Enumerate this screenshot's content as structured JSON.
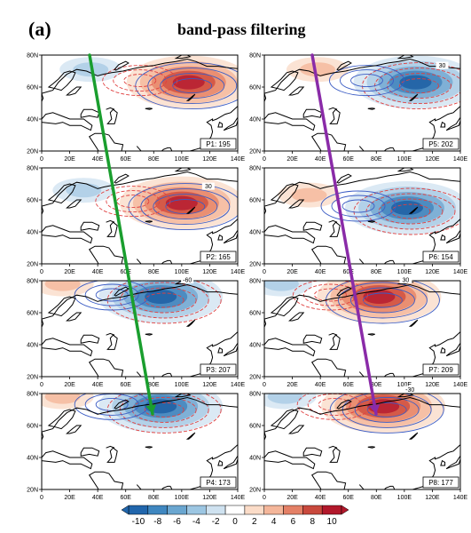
{
  "figure": {
    "label": "(a)",
    "title": "band-pass filtering"
  },
  "axes": {
    "lat_ticks": [
      "20N",
      "40N",
      "60N",
      "80N"
    ],
    "lon_ticks": [
      "0",
      "20E",
      "40E",
      "60E",
      "80E",
      "100E",
      "120E",
      "140E"
    ]
  },
  "panels": [
    {
      "id": "P1",
      "label": "P1: 195",
      "anomaly": "warm",
      "center_lon": 105,
      "center_lat": 63
    },
    {
      "id": "P2",
      "label": "P2: 165",
      "anomaly": "warm",
      "center_lon": 100,
      "center_lat": 58
    },
    {
      "id": "P3",
      "label": "P3: 207",
      "anomaly": "cold",
      "center_lon": 85,
      "center_lat": 70
    },
    {
      "id": "P4",
      "label": "P4: 173",
      "anomaly": "cold",
      "center_lon": 85,
      "center_lat": 72
    },
    {
      "id": "P5",
      "label": "P5: 202",
      "anomaly": "cold",
      "center_lon": 108,
      "center_lat": 63
    },
    {
      "id": "P6",
      "label": "P6: 154",
      "anomaly": "cold",
      "center_lon": 102,
      "center_lat": 55
    },
    {
      "id": "P7",
      "label": "P7: 209",
      "anomaly": "warm",
      "center_lon": 82,
      "center_lat": 70
    },
    {
      "id": "P8",
      "label": "P8: 177",
      "anomaly": "warm",
      "center_lon": 85,
      "center_lat": 72
    }
  ],
  "contour_labels": {
    "P2": "30",
    "P3": "-60",
    "P5": "30",
    "P7": "30",
    "P8": "-30"
  },
  "colorbar": {
    "ticks": [
      "-10",
      "-8",
      "-6",
      "-4",
      "-2",
      "0",
      "2",
      "4",
      "6",
      "8",
      "10"
    ],
    "colors": [
      "#2166ac",
      "#3f87c0",
      "#6aa6d0",
      "#9cc6e2",
      "#cfe2f0",
      "#ffffff",
      "#fbdcc8",
      "#f4b69a",
      "#e48066",
      "#c9493d",
      "#b2182b"
    ]
  },
  "trajectory_colors": {
    "left": "#1a9e2e",
    "right": "#8a2ba8"
  }
}
